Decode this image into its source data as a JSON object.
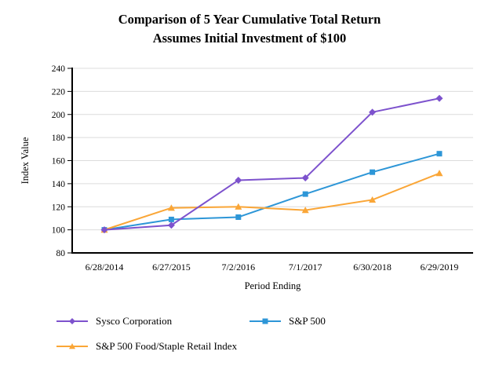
{
  "title": {
    "line1": "Comparison of 5 Year Cumulative Total Return",
    "line2": "Assumes Initial Investment of $100"
  },
  "chart_data": {
    "type": "line",
    "x": [
      "6/28/2014",
      "6/27/2015",
      "7/2/2016",
      "7/1/2017",
      "6/30/2018",
      "6/29/2019"
    ],
    "series": [
      {
        "name": "Sysco Corporation",
        "color": "#7D52CD",
        "marker": "diamond",
        "values": [
          100,
          104,
          143,
          145,
          202,
          214
        ]
      },
      {
        "name": "S&P 500",
        "color": "#2D96D7",
        "marker": "square",
        "values": [
          100,
          109,
          111,
          131,
          150,
          166
        ]
      },
      {
        "name": "S&P 500 Food/Staple Retail Index",
        "color": "#FAA637",
        "marker": "triangle",
        "values": [
          100,
          119,
          120,
          117,
          126,
          149
        ]
      }
    ],
    "xlabel": "Period Ending",
    "ylabel": "Index Value",
    "ylim": [
      80,
      240
    ],
    "yticks": [
      80,
      100,
      120,
      140,
      160,
      180,
      200,
      220,
      240
    ],
    "grid": true,
    "legend_position": "bottom"
  },
  "colors": {
    "background": "#FFFFFF",
    "grid": "#DCDCDC",
    "axis": "#000000",
    "text": "#000000"
  }
}
